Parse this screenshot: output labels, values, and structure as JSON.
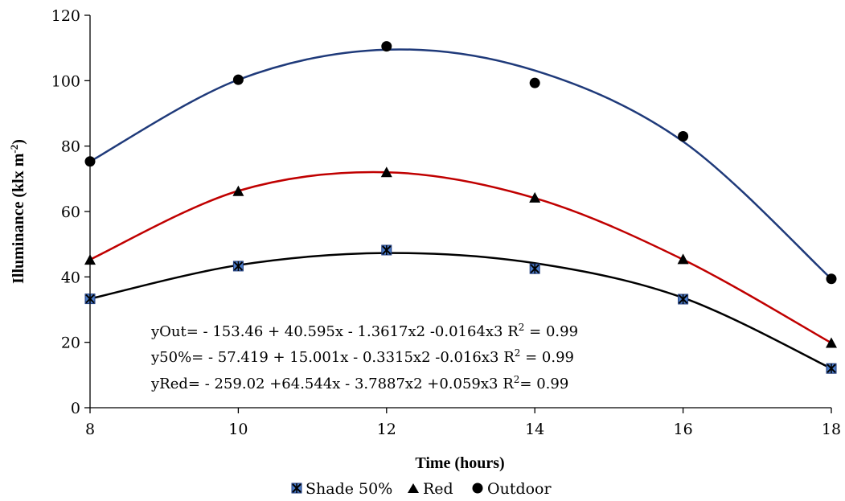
{
  "chart_data": {
    "type": "scatter",
    "xlabel": "Time (hours)",
    "ylabel_main": "Illuminance (klx m",
    "ylabel_sup": "-2",
    "ylabel_end": ")",
    "xlim": [
      8,
      18
    ],
    "ylim": [
      0,
      120
    ],
    "x_ticks": [
      8,
      10,
      12,
      14,
      16,
      18
    ],
    "y_ticks": [
      0,
      20,
      40,
      60,
      80,
      100,
      120
    ],
    "x": [
      8,
      10,
      12,
      14,
      16,
      18
    ],
    "series": [
      {
        "name": "Shade 50%",
        "marker": "x-square",
        "marker_color": "#4a7bc8",
        "line_color": "#000000",
        "values": [
          33.3,
          43.3,
          48.2,
          42.5,
          33.2,
          12.0
        ],
        "fit": [
          33.3,
          43.6,
          47.3,
          44.2,
          33.6,
          12.0
        ]
      },
      {
        "name": "Red",
        "marker": "triangle",
        "marker_color": "#000000",
        "line_color": "#c00000",
        "values": [
          45.2,
          66.2,
          72.0,
          64.2,
          45.4,
          19.8
        ],
        "fit": [
          45.3,
          66.3,
          72.0,
          64.1,
          45.3,
          19.8
        ]
      },
      {
        "name": "Outdoor",
        "marker": "circle",
        "marker_color": "#000000",
        "line_color": "#1f3a7a",
        "values": [
          75.3,
          100.3,
          110.5,
          99.3,
          83.0,
          39.4
        ],
        "fit": [
          75.3,
          100.3,
          109.5,
          103.1,
          81.4,
          39.4
        ]
      }
    ],
    "equations": [
      {
        "main": "yOut= - 153.46 + 40.595x - 1.3617x2 -0.0164x3 R",
        "sup": "2",
        "tail": " = 0.99"
      },
      {
        "main": "y50%= - 57.419 + 15.001x - 0.3315x2 -0.016x3 R",
        "sup": "2",
        "tail": " = 0.99"
      },
      {
        "main": "yRed= - 259.02 +64.544x - 3.7887x2 +0.059x3 R",
        "sup": "2",
        "tail": "= 0.99"
      }
    ],
    "legend_position": "bottom"
  }
}
